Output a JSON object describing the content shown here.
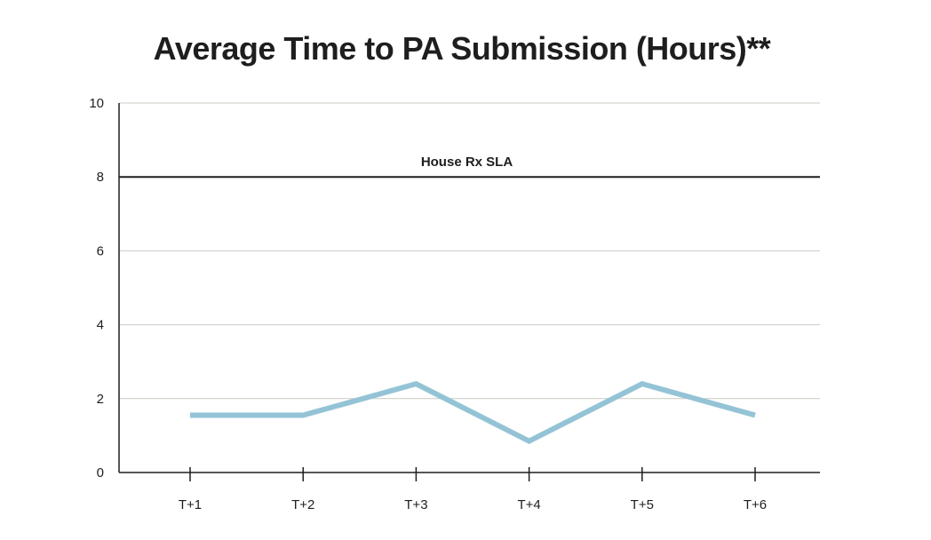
{
  "chart_data": {
    "type": "line",
    "title": "Average Time to PA Submission (Hours)**",
    "xlabel": "",
    "ylabel": "",
    "categories": [
      "T+1",
      "T+2",
      "T+3",
      "T+4",
      "T+5",
      "T+6"
    ],
    "series": [
      {
        "values": [
          1.55,
          1.55,
          2.4,
          0.85,
          2.4,
          1.55
        ],
        "color": "#94c3d6"
      }
    ],
    "reference_line": {
      "label": "House Rx SLA",
      "value": 8,
      "color": "#1e1e1e"
    },
    "ylim": [
      0,
      10
    ],
    "yticks": [
      0,
      2,
      4,
      6,
      8,
      10
    ],
    "grid": true,
    "legend": "none"
  }
}
